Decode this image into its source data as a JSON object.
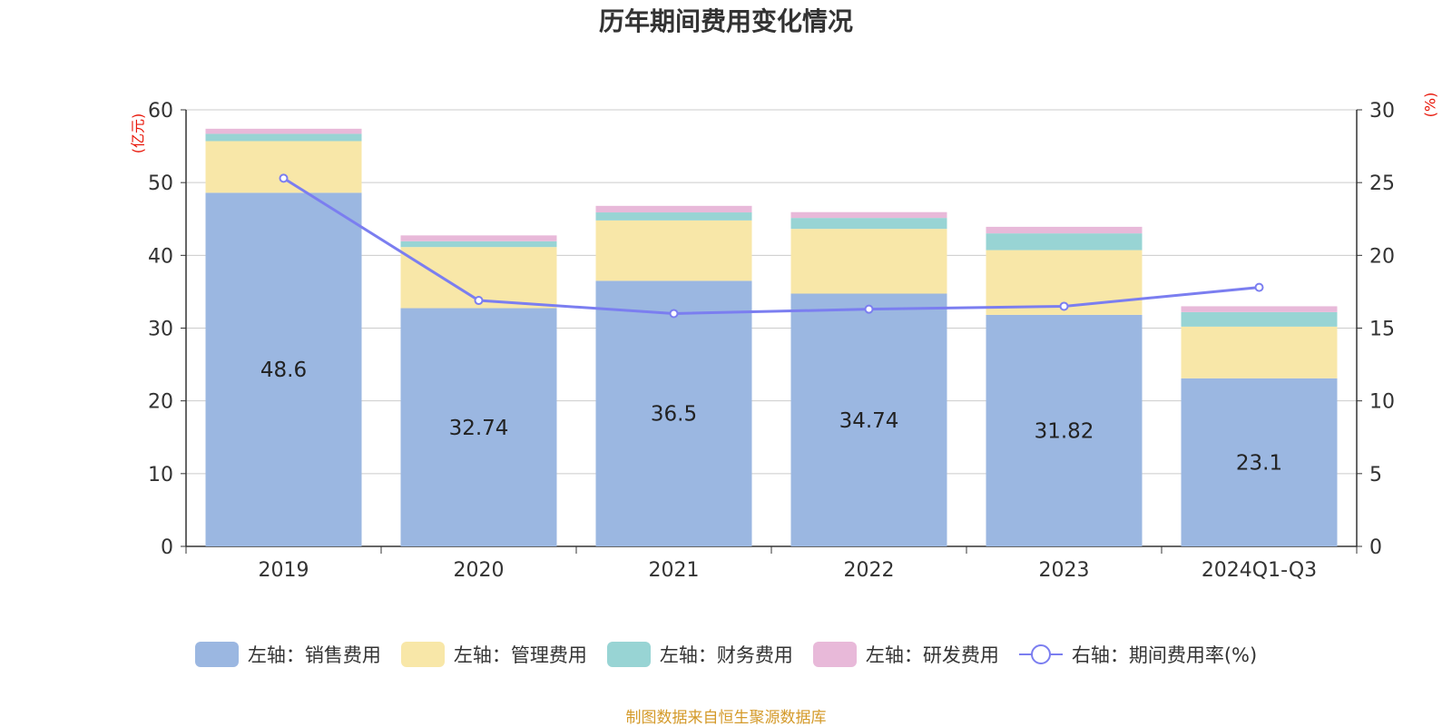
{
  "chart_data": {
    "type": "bar",
    "title": "历年期间费用变化情况",
    "categories": [
      "2019",
      "2020",
      "2021",
      "2022",
      "2023",
      "2024Q1-Q3"
    ],
    "series": [
      {
        "name": "左轴：销售费用",
        "axis": "left",
        "color": "#9bb7e1",
        "values": [
          48.6,
          32.74,
          36.5,
          34.74,
          31.82,
          23.1
        ]
      },
      {
        "name": "左轴：管理费用",
        "axis": "left",
        "color": "#f8e7a8",
        "values": [
          7.1,
          8.4,
          8.3,
          8.9,
          8.9,
          7.1
        ]
      },
      {
        "name": "左轴：财务费用",
        "axis": "left",
        "color": "#98d4d4",
        "values": [
          1.0,
          0.8,
          1.1,
          1.5,
          2.3,
          2.0
        ]
      },
      {
        "name": "左轴：研发费用",
        "axis": "left",
        "color": "#e8b9d9",
        "values": [
          0.7,
          0.8,
          0.9,
          0.8,
          0.9,
          0.8
        ]
      },
      {
        "name": "右轴：期间费用率(%)",
        "axis": "right",
        "type": "line",
        "color": "#7b7ef0",
        "values": [
          25.3,
          16.9,
          16.0,
          16.3,
          16.5,
          17.8
        ]
      }
    ],
    "data_labels": [
      "48.6",
      "32.74",
      "36.5",
      "34.74",
      "31.82",
      "23.1"
    ],
    "ylabel_left": "(亿元)",
    "ylabel_right": "(%)",
    "ylim_left": [
      0,
      60
    ],
    "ylim_right": [
      0,
      30
    ],
    "yticks_left": [
      "0",
      "10",
      "20",
      "30",
      "40",
      "50",
      "60"
    ],
    "yticks_right": [
      "0",
      "5",
      "10",
      "15",
      "20",
      "25",
      "30"
    ],
    "grid": true,
    "legend": "bottom",
    "source": "制图数据来自恒生聚源数据库"
  }
}
